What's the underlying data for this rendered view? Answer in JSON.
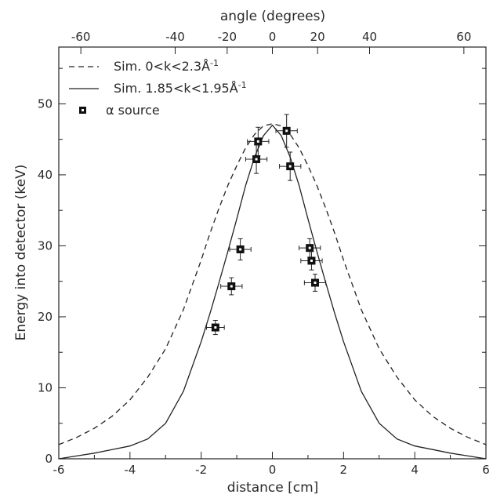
{
  "chart_data": {
    "type": "line",
    "xlabel": "distance [cm]",
    "ylabel": "Energy into detector (keV)",
    "top_axis_label": "angle (degrees)",
    "xlim": [
      -6,
      6
    ],
    "ylim": [
      0,
      58
    ],
    "x_ticks": [
      "-6",
      "-4",
      "-2",
      "0",
      "2",
      "4",
      "6"
    ],
    "y_ticks": [
      "0",
      "10",
      "20",
      "30",
      "40",
      "50"
    ],
    "top_ticks": [
      {
        "label": "-60",
        "x": -5.38
      },
      {
        "label": "-40",
        "x": -2.73
      },
      {
        "label": "-20",
        "x": -1.27
      },
      {
        "label": "0",
        "x": 0.0
      },
      {
        "label": "20",
        "x": 1.27
      },
      {
        "label": "40",
        "x": 2.73
      },
      {
        "label": "60",
        "x": 5.38
      }
    ],
    "grid": false,
    "legend_position": "top-left",
    "legend": [
      {
        "label": "Sim. 0<k<2.3Å",
        "sup": "-1",
        "style": "dashed"
      },
      {
        "label": "Sim. 1.85<k<1.95Å",
        "sup": "-1",
        "style": "solid"
      },
      {
        "label": "α source",
        "style": "marker"
      }
    ],
    "series": [
      {
        "name": "Sim. 0<k<2.3Å⁻¹",
        "style": "dashed",
        "x": [
          -6,
          -5.5,
          -5,
          -4.5,
          -4,
          -3.5,
          -3,
          -2.5,
          -2,
          -1.75,
          -1.5,
          -1.25,
          -1,
          -0.75,
          -0.5,
          -0.25,
          0,
          0.25,
          0.5,
          0.75,
          1,
          1.25,
          1.5,
          1.75,
          2,
          2.5,
          3,
          3.5,
          4,
          4.5,
          5,
          5.5,
          6
        ],
        "y": [
          2.0,
          3.0,
          4.3,
          6.0,
          8.3,
          11.5,
          15.5,
          21.0,
          28.0,
          31.8,
          35.3,
          38.5,
          41.3,
          43.8,
          45.7,
          46.9,
          47.2,
          46.9,
          45.7,
          43.8,
          41.3,
          38.5,
          35.3,
          31.8,
          28.0,
          21.0,
          15.5,
          11.5,
          8.3,
          6.0,
          4.3,
          3.0,
          2.0
        ]
      },
      {
        "name": "Sim. 1.85<k<1.95Å⁻¹",
        "style": "solid",
        "x": [
          -6,
          -5.5,
          -5,
          -4.5,
          -4,
          -3.5,
          -3,
          -2.5,
          -2,
          -1.75,
          -1.5,
          -1.25,
          -1,
          -0.75,
          -0.5,
          -0.25,
          0,
          0.25,
          0.5,
          0.75,
          1,
          1.25,
          1.5,
          1.75,
          2,
          2.5,
          3,
          3.5,
          4,
          4.5,
          5,
          5.5,
          6
        ],
        "y": [
          0.0,
          0.4,
          0.8,
          1.3,
          1.8,
          2.8,
          5.0,
          9.5,
          16.5,
          20.5,
          24.8,
          29.2,
          33.8,
          38.5,
          42.5,
          45.5,
          47.0,
          45.5,
          42.5,
          38.5,
          33.8,
          29.2,
          24.8,
          20.5,
          16.5,
          9.5,
          5.0,
          2.8,
          1.8,
          1.3,
          0.8,
          0.4,
          0.0
        ]
      }
    ],
    "points": {
      "name": "α source",
      "x": [
        0.4,
        -0.4,
        -0.45,
        0.5,
        -0.9,
        1.05,
        1.1,
        -1.15,
        1.2,
        -1.6
      ],
      "y": [
        46.2,
        44.7,
        42.2,
        41.2,
        29.5,
        29.7,
        27.9,
        24.3,
        24.8,
        18.5
      ],
      "xerr": [
        0.3,
        0.3,
        0.3,
        0.3,
        0.3,
        0.3,
        0.3,
        0.3,
        0.3,
        0.25
      ],
      "yerr": [
        2.3,
        2.0,
        2.0,
        2.0,
        1.5,
        1.3,
        1.3,
        1.2,
        1.2,
        1.0
      ]
    }
  }
}
